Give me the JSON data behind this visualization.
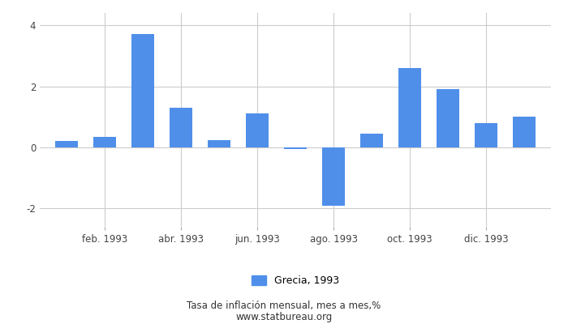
{
  "values": [
    0.2,
    0.35,
    3.7,
    1.3,
    0.25,
    1.1,
    -0.05,
    -1.9,
    0.45,
    2.6,
    1.9,
    0.8,
    1.0
  ],
  "n_bars": 13,
  "x_tick_positions_0indexed": [
    1,
    3,
    5,
    7,
    9,
    11
  ],
  "x_tick_labels": [
    "feb. 1993",
    "abr. 1993",
    "jun. 1993",
    "ago. 1993",
    "oct. 1993",
    "dic. 1993"
  ],
  "bar_color": "#4f8fea",
  "ylim_bottom": -2.6,
  "ylim_top": 4.4,
  "yticks": [
    -2,
    0,
    2,
    4
  ],
  "legend_label": "Grecia, 1993",
  "footer_line1": "Tasa de inflación mensual, mes a mes,%",
  "footer_line2": "www.statbureau.org",
  "background_color": "#ffffff",
  "grid_color": "#cccccc",
  "bar_width": 0.6
}
